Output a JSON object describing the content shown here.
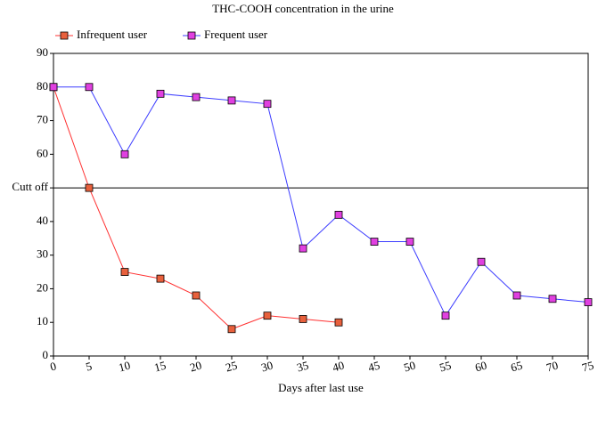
{
  "chart_data": {
    "type": "line",
    "title": "THC-COOH concentration in the urine",
    "x_label": "Days after last use",
    "x": [
      0,
      5,
      10,
      15,
      20,
      25,
      30,
      35,
      40,
      45,
      50,
      55,
      60,
      65,
      70,
      75
    ],
    "series": [
      {
        "name": "Infrequent user",
        "color": "#ff3030",
        "marker_color": "#e8603c",
        "values": [
          80,
          50,
          25,
          23,
          18,
          8,
          12,
          11,
          10,
          null,
          null,
          null,
          null,
          null,
          null,
          null
        ]
      },
      {
        "name": "Frequent user",
        "color": "#3c3cff",
        "marker_color": "#e040e0",
        "values": [
          80,
          80,
          60,
          78,
          77,
          76,
          75,
          32,
          42,
          34,
          34,
          12,
          28,
          18,
          17,
          16
        ]
      }
    ],
    "xlim": [
      0,
      75
    ],
    "xticks": [
      0,
      5,
      10,
      15,
      20,
      25,
      30,
      35,
      40,
      45,
      50,
      55,
      60,
      65,
      70,
      75
    ],
    "ylim": [
      0,
      90
    ],
    "yticks": [
      0,
      10,
      20,
      30,
      40,
      {
        "value": 50,
        "label": "Cutt off"
      },
      60,
      70,
      80,
      90
    ],
    "grid": false,
    "legend": "top"
  }
}
